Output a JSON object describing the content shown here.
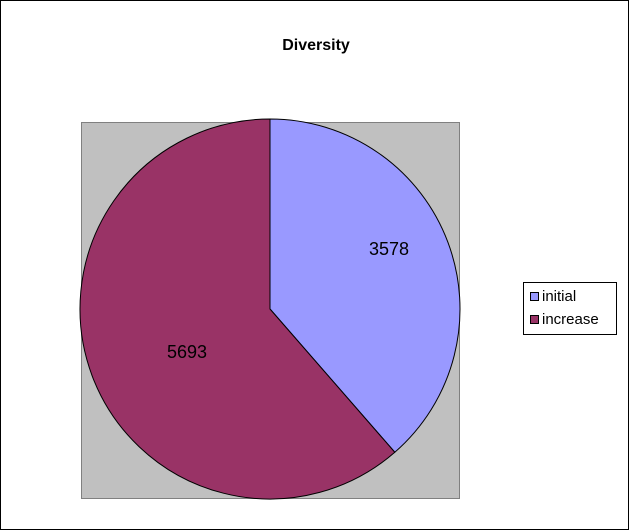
{
  "chart_data": {
    "type": "pie",
    "title": "Diversity",
    "categories": [
      "initial",
      "increase"
    ],
    "values": [
      3578,
      5693
    ],
    "colors": [
      "#9999ff",
      "#993366"
    ],
    "legend": "right",
    "start": "top",
    "direction": "clockwise"
  }
}
